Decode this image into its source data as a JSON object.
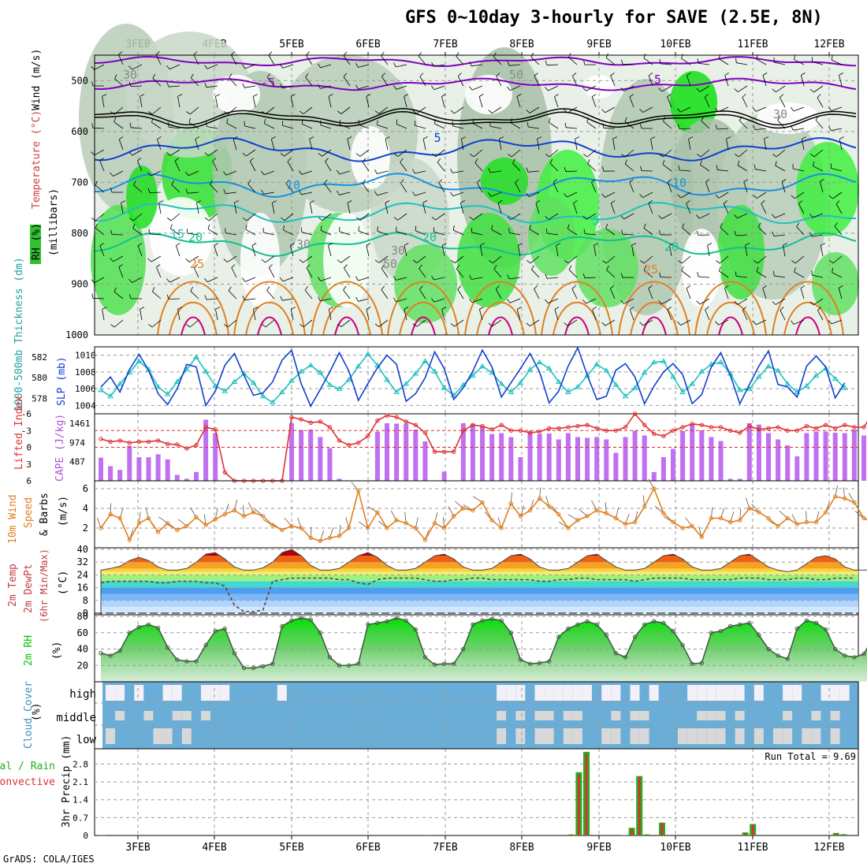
{
  "title": "GFS 0~10day 3-hourly for SAVE (2.5E, 8N)",
  "footer": "GrADS: COLA/IGES",
  "run_total": "Run Total = 9.69",
  "colors": {
    "purple": "#8000c0",
    "black": "#000000",
    "blue": "#1040d0",
    "lightblue": "#1890e0",
    "teal": "#20c0c0",
    "green": "#10c090",
    "orange": "#e08020",
    "magenta": "#d00080",
    "rain": "#20b020",
    "conv": "#e03030",
    "cape": "#c070f0",
    "cloud": "#6aaed8",
    "rhgreen": "#10c010"
  },
  "chart_data": [
    {
      "type": "contour",
      "panel": "upper-air",
      "ylabel": [
        "RH (%)",
        "Temperature (°C)",
        "Wind (m/s)"
      ],
      "ylabel2": "(millibars)",
      "xticks": [
        "3FEB",
        "4FEB",
        "5FEB",
        "6FEB",
        "7FEB",
        "8FEB",
        "9FEB",
        "10FEB",
        "11FEB",
        "12FEB"
      ],
      "yticks": [
        "500",
        "600",
        "700",
        "800",
        "900",
        "1000"
      ],
      "ylim": [
        450,
        1000
      ],
      "contour_labels": [
        "-5",
        "-5",
        "5",
        "10",
        "10",
        "15",
        "20",
        "20",
        "20",
        "25",
        "25",
        "5",
        "30",
        "30",
        "30",
        "50",
        "50",
        "30"
      ]
    },
    {
      "type": "line",
      "panel": "thickness-slp",
      "ylabel_left": "1000-500mb Thickness (dm)",
      "ylabel_right": "SLP (mb)",
      "left_ticks": [
        "582",
        "580",
        "578"
      ],
      "right_ticks": [
        "1010",
        "1008",
        "1006",
        "1004"
      ],
      "series": [
        {
          "name": "SLP (mb)",
          "values": [
            1006.2,
            1007.4,
            1005.6,
            1008.3,
            1010.1,
            1008.2,
            1005.4,
            1004.1,
            1006.0,
            1008.9,
            1008.6,
            1004.0,
            1005.7,
            1008.8,
            1010.2,
            1007.6,
            1005.2,
            1005.5,
            1006.8,
            1009.4,
            1010.6,
            1006.6,
            1003.9,
            1005.9,
            1008.0,
            1010.3,
            1008.1,
            1004.6,
            1006.6,
            1008.5,
            1010.0,
            1008.9,
            1004.5,
            1005.4,
            1007.3,
            1010.4,
            1008.4,
            1004.7,
            1006.1,
            1008.1,
            1010.6,
            1008.6,
            1005.0,
            1006.7,
            1008.4,
            1010.2,
            1008.0,
            1004.3,
            1005.7,
            1008.7,
            1010.9,
            1007.6,
            1004.7,
            1005.1,
            1008.2,
            1009.0,
            1007.4,
            1004.2,
            1006.3,
            1008.0,
            1009.0,
            1007.7,
            1004.2,
            1005.3,
            1008.6,
            1010.3,
            1007.6,
            1004.2,
            1006.5,
            1008.7,
            1010.5,
            1006.5,
            1006.2,
            1005.0,
            1008.7,
            1009.9,
            1008.6,
            1004.9,
            1006.7
          ]
        },
        {
          "name": "1000-500mb Thickness (dm)",
          "values": [
            578.8,
            578.2,
            579.4,
            580.5,
            581.6,
            580.8,
            579.1,
            578.4,
            579.6,
            580.8,
            582.0,
            580.6,
            579.2,
            578.7,
            579.6,
            580.4,
            579.5,
            578.2,
            577.6,
            578.6,
            579.7,
            580.6,
            581.2,
            580.5,
            579.3,
            578.9,
            579.8,
            581.1,
            582.3,
            581.2,
            579.8,
            578.6,
            579.4,
            580.4,
            581.6,
            580.6,
            579.0,
            578.3,
            579.3,
            580.2,
            581.1,
            580.5,
            579.4,
            578.6,
            579.5,
            580.8,
            581.5,
            580.9,
            579.6,
            578.6,
            579.1,
            580.2,
            581.3,
            580.7,
            579.3,
            578.2,
            579.0,
            580.5,
            581.5,
            581.6,
            580.1,
            578.6,
            579.4,
            580.6,
            581.3,
            581.5,
            580.4,
            578.8,
            578.9,
            580.1,
            581.1,
            580.7,
            579.4,
            578.6,
            579.2,
            580.2,
            580.9,
            579.9,
            579.0
          ]
        }
      ]
    },
    {
      "type": "bar+line",
      "panel": "cape-li",
      "ylabel_left": "Lifted Index",
      "ylabel_right": "CAPE (J/kg)",
      "left_ticks": [
        "-6",
        "-3",
        "0",
        "3",
        "6"
      ],
      "right_ticks": [
        "1461",
        "974",
        "487"
      ],
      "series": [
        {
          "name": "CAPE (J/kg)",
          "values": [
            587,
            370,
            278,
            890,
            597,
            597,
            673,
            543,
            150,
            53,
            223,
            1550,
            1210,
            0,
            0,
            0,
            0,
            0,
            0,
            0,
            1460,
            1290,
            1300,
            1110,
            830,
            50,
            0,
            0,
            0,
            1250,
            1460,
            1450,
            1450,
            1300,
            1000,
            0,
            233,
            0,
            1461,
            1442,
            1387,
            1187,
            1210,
            1110,
            600,
            1250,
            1187,
            1200,
            1050,
            1210,
            1110,
            1090,
            1110,
            1050,
            710,
            1110,
            1271,
            1150,
            220,
            600,
            810,
            1260,
            1430,
            1281,
            1110,
            1010,
            50,
            50,
            1461,
            1427,
            1210,
            1050,
            900,
            620,
            1210,
            1250,
            1250,
            1220,
            1210,
            1300,
            1150,
            1600,
            1110,
            1110,
            1010
          ]
        },
        {
          "name": "Lifted Index",
          "values": [
            -1.5,
            -1.0,
            -1.2,
            -0.8,
            -1.0,
            -1.0,
            -1.2,
            -0.6,
            -0.5,
            0.2,
            -0.4,
            -3.6,
            -3.2,
            4.5,
            6,
            6,
            6,
            6,
            6,
            6,
            -5.4,
            -5.0,
            -4.4,
            -4.6,
            -3.6,
            -1.2,
            -0.4,
            -0.8,
            -2.0,
            -4.8,
            -5.7,
            -5.4,
            -4.6,
            -4.0,
            -2.6,
            0.8,
            0.8,
            0.8,
            -3.0,
            -4.0,
            -3.8,
            -3.2,
            -4.0,
            -3.0,
            -3.0,
            -2.6,
            -2.8,
            -3.4,
            -3.4,
            -3.6,
            -3.8,
            -4.0,
            -3.4,
            -3.0,
            -3.0,
            -3.6,
            -6.0,
            -4.0,
            -2.4,
            -2.0,
            -3.0,
            -3.6,
            -4.2,
            -4.0,
            -3.6,
            -3.6,
            -3.0,
            -2.6,
            -3.8,
            -3.2,
            -3.4,
            -3.6,
            -3.0,
            -3.0,
            -3.8,
            -3.4,
            -4.0,
            -3.4,
            -4.0,
            -3.6,
            -3.6,
            -6.2,
            -3.2,
            -3.2,
            -2.6
          ]
        }
      ]
    },
    {
      "type": "line",
      "panel": "wind10m",
      "ylabel": [
        "10m Wind",
        "Speed",
        "& Barbs"
      ],
      "ylabel2": "(m/s)",
      "yticks": [
        "6",
        "4",
        "2"
      ],
      "ylim": [
        0,
        6.8
      ],
      "series": [
        {
          "name": "10m Wind Speed",
          "values": [
            2.0,
            3.4,
            3.0,
            0.8,
            2.5,
            3.0,
            1.6,
            2.5,
            1.8,
            2.2,
            3.1,
            2.3,
            2.9,
            3.4,
            3.8,
            3.2,
            3.6,
            3.2,
            2.3,
            1.8,
            2.2,
            2.0,
            1.0,
            0.7,
            1.0,
            1.2,
            2.0,
            5.8,
            2.0,
            3.6,
            2.0,
            2.8,
            2.5,
            2.0,
            0.8,
            2.5,
            2.0,
            3.2,
            4.0,
            3.8,
            4.6,
            2.8,
            2.0,
            4.5,
            3.2,
            3.8,
            5.0,
            4.2,
            3.4,
            2.0,
            2.8,
            3.2,
            3.8,
            3.5,
            3.0,
            2.4,
            2.6,
            4.2,
            6.0,
            3.5,
            2.6,
            2.0,
            2.2,
            1.1,
            3.0,
            3.0,
            2.6,
            2.8,
            4.0,
            3.6,
            3.0,
            2.2,
            3.0,
            2.4,
            2.6,
            2.6,
            3.6,
            5.2,
            5.0,
            4.6,
            3.0,
            2.5,
            2.8,
            2.5
          ]
        }
      ]
    },
    {
      "type": "area",
      "panel": "temperature",
      "ylabel": [
        "2m Temp",
        "2m DewPt",
        "(6hr Min/Max)"
      ],
      "ylabel2": "(°C)",
      "yticks": [
        "40",
        "32",
        "24",
        "16",
        "8",
        "0"
      ],
      "ylim": [
        -1,
        41
      ],
      "series": [
        {
          "name": "2m Temp",
          "values": [
            27,
            28,
            29.5,
            33,
            35,
            33,
            29,
            27,
            27,
            28,
            32,
            37,
            38,
            34,
            29,
            27,
            27,
            28.5,
            32,
            38,
            40,
            36,
            30,
            27,
            27,
            28,
            32,
            36,
            38,
            35,
            30,
            27,
            27,
            28,
            32,
            36,
            37,
            34,
            29,
            27,
            27,
            28,
            32,
            36,
            37,
            34,
            29,
            27,
            27,
            28,
            32,
            36,
            37,
            33,
            29,
            27,
            27,
            28,
            32,
            36,
            37,
            34,
            29,
            27,
            27,
            28,
            32,
            36,
            37,
            33,
            29,
            27,
            26,
            27,
            31,
            35,
            36,
            34,
            29,
            27,
            27,
            27,
            28,
            30,
            34,
            35,
            30,
            27,
            26
          ]
        },
        {
          "name": "2m DewPt",
          "values": [
            19,
            20,
            20,
            20,
            20,
            20,
            19,
            19,
            20,
            20,
            20,
            19,
            19,
            17,
            5,
            1,
            1,
            2,
            20,
            21,
            22,
            22,
            22,
            22,
            22,
            21,
            21,
            19,
            18,
            21,
            22,
            22,
            22,
            22,
            21,
            20,
            20,
            21,
            21,
            22,
            22,
            21,
            21,
            21,
            21,
            21,
            20,
            20,
            21,
            21,
            22,
            22,
            21,
            21,
            21,
            21,
            20,
            21,
            22,
            22,
            22,
            22,
            21,
            21,
            21,
            21,
            21,
            22,
            22,
            22,
            21,
            21,
            21,
            22,
            22,
            21,
            21,
            22,
            22,
            22
          ]
        }
      ]
    },
    {
      "type": "area",
      "panel": "rh2m",
      "ylabel": "2m RH",
      "ylabel2": "(%)",
      "yticks": [
        "80",
        "60",
        "40",
        "20"
      ],
      "ylim": [
        0,
        82
      ],
      "series": [
        {
          "name": "2m RH",
          "values": [
            35,
            32,
            38,
            60,
            67,
            70,
            66,
            42,
            27,
            25,
            25,
            45,
            62,
            65,
            35,
            17,
            17,
            19,
            22,
            68,
            75,
            78,
            76,
            60,
            30,
            20,
            20,
            22,
            70,
            72,
            74,
            78,
            75,
            64,
            30,
            21,
            22,
            22,
            40,
            70,
            75,
            77,
            75,
            60,
            27,
            22,
            23,
            25,
            55,
            65,
            70,
            74,
            70,
            57,
            35,
            30,
            55,
            70,
            74,
            72,
            62,
            45,
            22,
            23,
            60,
            62,
            68,
            70,
            72,
            57,
            40,
            32,
            28,
            65,
            75,
            72,
            64,
            40,
            32,
            30,
            34,
            55,
            70,
            75,
            80
          ]
        }
      ]
    },
    {
      "type": "heatmap",
      "panel": "cloud-cover",
      "ylabel": "Cloud Cover",
      "ylabel2": "(%)",
      "rows": [
        "high",
        "middle",
        "low"
      ]
    },
    {
      "type": "bar",
      "panel": "precip",
      "ylabel": "3hr Precip (mm)",
      "legend": [
        "Total / Rain",
        "Convective"
      ],
      "yticks": [
        "2.8",
        "2.1",
        "1.4",
        "0.7",
        "0"
      ],
      "ylim": [
        0,
        3.4
      ],
      "xticks": [
        "3FEB",
        "4FEB",
        "5FEB",
        "6FEB",
        "7FEB",
        "8FEB",
        "9FEB",
        "10FEB",
        "11FEB",
        "12FEB"
      ],
      "series": [
        {
          "name": "Total",
          "values": [
            0,
            0.02,
            0,
            0,
            0,
            0,
            0,
            0,
            0,
            0,
            0,
            0,
            0,
            0,
            0,
            0,
            0,
            0,
            0,
            0,
            0,
            0,
            0,
            0,
            0,
            0,
            0,
            0,
            0,
            0,
            0,
            0,
            0,
            0,
            0,
            0,
            0,
            0,
            0,
            0,
            0,
            0,
            0,
            0,
            0.02,
            0,
            0,
            0,
            0,
            0,
            0,
            0,
            0,
            0,
            0,
            0,
            0,
            0,
            0,
            0,
            0,
            0,
            0,
            0.04,
            2.48,
            3.28,
            0,
            0,
            0,
            0,
            0.01,
            0.3,
            2.33,
            0.04,
            0,
            0.5,
            0,
            0,
            0,
            0,
            0,
            0,
            0,
            0,
            0,
            0,
            0.12,
            0.45,
            0,
            0,
            0,
            0,
            0,
            0,
            0,
            0,
            0,
            0,
            0.1,
            0.05
          ]
        },
        {
          "name": "Convective",
          "values": [
            0,
            0.02,
            0,
            0,
            0,
            0,
            0,
            0,
            0,
            0,
            0,
            0,
            0,
            0,
            0,
            0,
            0,
            0,
            0,
            0,
            0,
            0,
            0,
            0,
            0,
            0,
            0,
            0,
            0,
            0,
            0,
            0,
            0,
            0,
            0,
            0,
            0,
            0,
            0,
            0,
            0,
            0,
            0,
            0,
            0.02,
            0,
            0,
            0,
            0,
            0,
            0,
            0,
            0,
            0,
            0,
            0,
            0,
            0,
            0,
            0,
            0,
            0,
            0,
            0.04,
            2.4,
            3.2,
            0,
            0,
            0,
            0,
            0.01,
            0.28,
            2.3,
            0.04,
            0,
            0.5,
            0,
            0,
            0,
            0,
            0,
            0,
            0,
            0,
            0,
            0,
            0.1,
            0.42,
            0,
            0,
            0,
            0,
            0,
            0,
            0,
            0,
            0,
            0,
            0.08,
            0.04
          ]
        }
      ]
    }
  ]
}
